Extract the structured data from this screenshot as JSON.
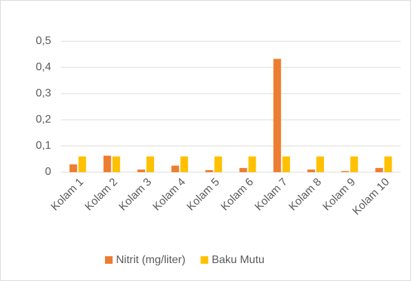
{
  "chart_data": {
    "type": "bar",
    "categories": [
      "Kolam 1",
      "Kolam 2",
      "Kolam 3",
      "Kolam 4",
      "Kolam 5",
      "Kolam 6",
      "Kolam 7",
      "Kolam 8",
      "Kolam 9",
      "Kolam 10"
    ],
    "series": [
      {
        "name": "Nitrit (mg/liter)",
        "color": "#ed7d31",
        "values": [
          0.03,
          0.063,
          0.01,
          0.025,
          0.008,
          0.016,
          0.433,
          0.01,
          0.004,
          0.016
        ]
      },
      {
        "name": "Baku Mutu",
        "color": "#ffc000",
        "values": [
          0.06,
          0.06,
          0.06,
          0.06,
          0.06,
          0.06,
          0.06,
          0.06,
          0.06,
          0.06
        ]
      }
    ],
    "ylim": [
      0,
      0.5
    ],
    "yticks": [
      0,
      {
        "value": 0.1,
        "label": "0,1"
      },
      {
        "value": 0.2,
        "label": "0,2"
      },
      {
        "value": 0.3,
        "label": "0,3"
      },
      {
        "value": 0.4,
        "label": "0,4"
      },
      {
        "value": 0.5,
        "label": "0,5"
      }
    ],
    "grid": true,
    "legend": "bottom"
  }
}
